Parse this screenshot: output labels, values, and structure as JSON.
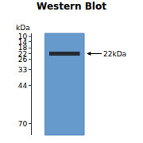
{
  "chart_data": {
    "type": "gel",
    "title": "Western Blot",
    "ylabel": "kDa",
    "values": [
      22
    ],
    "annotations": [
      "22kDa"
    ],
    "color": "#1a1a1a",
    "ylim": [
      78,
      8
    ],
    "yticks": [
      70,
      44,
      33,
      26,
      22,
      18,
      14,
      10
    ],
    "grid": false,
    "tick_labels": "y"
  }
}
